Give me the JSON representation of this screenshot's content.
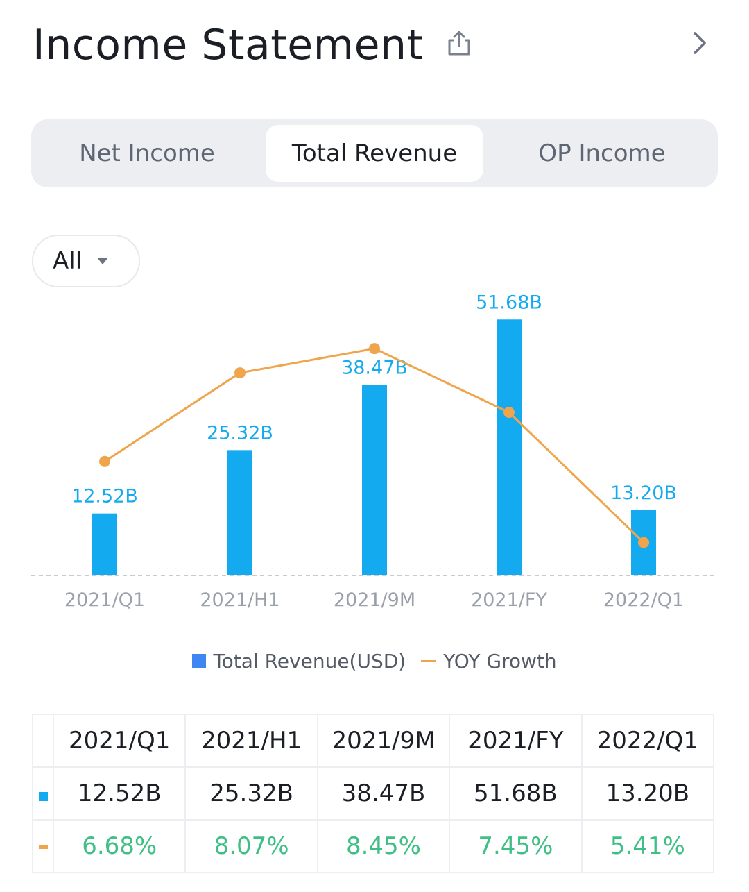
{
  "header": {
    "title": "Income Statement"
  },
  "icons": {
    "share": "share-icon",
    "next": "chevron-right-icon"
  },
  "tabs": [
    {
      "label": "Net Income",
      "active": false
    },
    {
      "label": "Total Revenue",
      "active": true
    },
    {
      "label": "OP Income",
      "active": false
    }
  ],
  "filter": {
    "value": "All"
  },
  "colors": {
    "bar": "#13aaf0",
    "line": "#f0a44b",
    "label": "#13aaf0",
    "growth": "#3fbf85",
    "legend_bar": "#3f86f3"
  },
  "chart_data": {
    "type": "bar",
    "categories": [
      "2021/Q1",
      "2021/H1",
      "2021/9M",
      "2021/FY",
      "2022/Q1"
    ],
    "series": [
      {
        "name": "Total Revenue(USD)",
        "type": "bar",
        "values": [
          12.52,
          25.32,
          38.47,
          51.68,
          13.2
        ],
        "labels": [
          "12.52B",
          "25.32B",
          "38.47B",
          "51.68B",
          "13.20B"
        ]
      },
      {
        "name": "YOY Growth",
        "type": "line",
        "values": [
          6.68,
          8.07,
          8.45,
          7.45,
          5.41
        ],
        "labels": [
          "6.68%",
          "8.07%",
          "8.45%",
          "7.45%",
          "5.41%"
        ]
      }
    ],
    "ylim_bar": [
      0,
      52
    ],
    "ylim_line": [
      5.1,
      8.8
    ]
  },
  "legend": {
    "bar_label": "Total Revenue(USD)",
    "line_label": "YOY Growth"
  },
  "table": {
    "headers": [
      "2021/Q1",
      "2021/H1",
      "2021/9M",
      "2021/FY",
      "2022/Q1"
    ],
    "revenue": [
      "12.52B",
      "25.32B",
      "38.47B",
      "51.68B",
      "13.20B"
    ],
    "growth": [
      "6.68%",
      "8.07%",
      "8.45%",
      "7.45%",
      "5.41%"
    ]
  }
}
